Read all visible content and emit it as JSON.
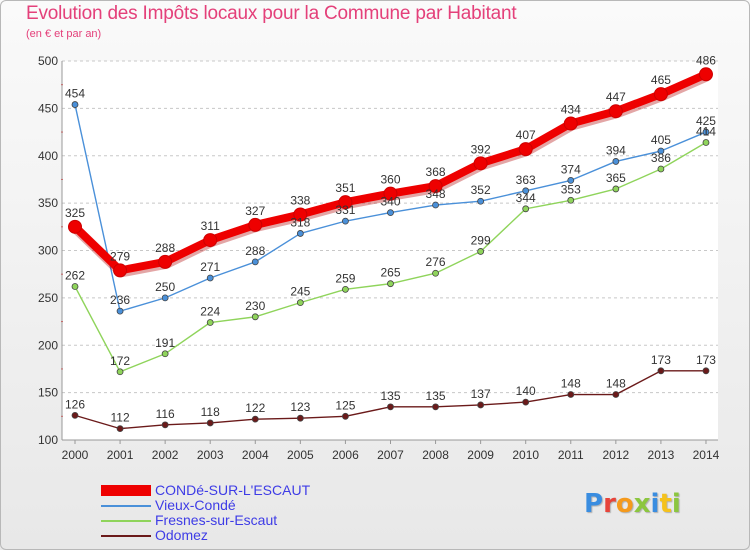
{
  "title": "Evolution des Impôts locaux pour la Commune par Habitant",
  "subtitle": "(en € et par an)",
  "logo": {
    "text": "Proxiti",
    "colors": [
      "#3a8de0",
      "#e7443a",
      "#f59a1c",
      "#8cc63f",
      "#3a8de0",
      "#f5c21c",
      "#8cc63f"
    ]
  },
  "chart_data": {
    "type": "line",
    "title": "Evolution des Impôts locaux pour la Commune par Habitant",
    "subtitle": "(en € et par an)",
    "xlabel": "",
    "ylabel": "",
    "x": [
      "2000",
      "2001",
      "2002",
      "2003",
      "2004",
      "2005",
      "2006",
      "2007",
      "2008",
      "2009",
      "2010",
      "2011",
      "2012",
      "2013",
      "2014"
    ],
    "ylim": [
      100,
      500
    ],
    "yticks": [
      100,
      150,
      200,
      250,
      300,
      350,
      400,
      450,
      500
    ],
    "grid": "dashed horizontal",
    "legend_position": "bottom-left",
    "series": [
      {
        "name": "CONDé-SUR-L'ESCAUT",
        "color": "#ee0000",
        "values": [
          325,
          279,
          288,
          311,
          327,
          338,
          351,
          360,
          368,
          392,
          407,
          434,
          447,
          465,
          486
        ],
        "labels": [
          "325",
          "279",
          "288",
          "311",
          "327",
          "338",
          "351",
          "360",
          "368",
          "392",
          "407",
          "434",
          "447",
          "465",
          "486"
        ]
      },
      {
        "name": "Vieux-Condé",
        "color": "#4a90d9",
        "values": [
          454,
          236,
          250,
          271,
          288,
          318,
          331,
          340,
          348,
          352,
          363,
          374,
          394,
          405,
          425
        ],
        "labels": [
          "454",
          "236",
          "250",
          "271",
          "288",
          "318",
          "331",
          "340",
          "348",
          "352",
          "363",
          "374",
          "394",
          "405",
          "425"
        ]
      },
      {
        "name": "Fresnes-sur-Escaut",
        "color": "#8fd45b",
        "values": [
          262,
          172,
          191,
          224,
          230,
          245,
          259,
          265,
          276,
          299,
          344,
          353,
          365,
          386,
          414
        ],
        "labels": [
          "262",
          "172",
          "191",
          "224",
          "230",
          "245",
          "259",
          "265",
          "276",
          "299",
          "344",
          "353",
          "365",
          "386",
          "414"
        ]
      },
      {
        "name": "Odomez",
        "color": "#6b1a1a",
        "values": [
          126,
          112,
          116,
          118,
          122,
          123,
          125,
          135,
          135,
          137,
          140,
          148,
          148,
          173,
          173
        ],
        "labels": [
          "126",
          "112",
          "116",
          "118",
          "122",
          "123",
          "125",
          "135",
          "135",
          "137",
          "140",
          "148",
          "148",
          "173",
          "173"
        ]
      }
    ]
  }
}
